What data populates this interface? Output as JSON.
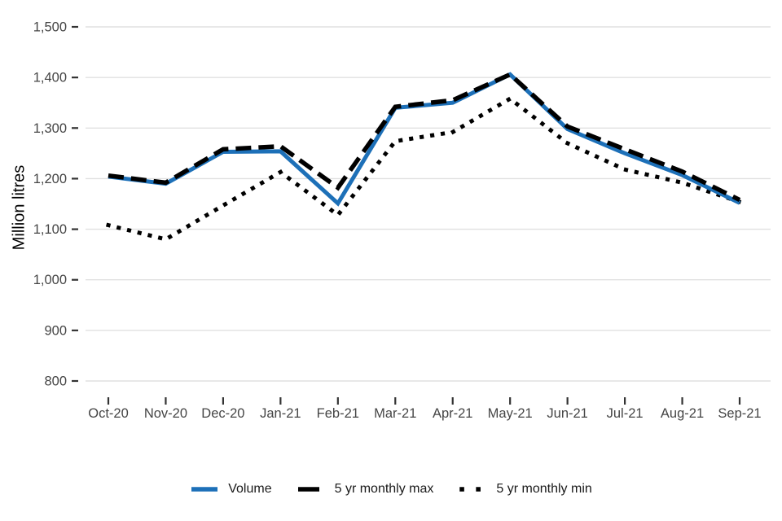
{
  "page": {
    "background": "#ffffff"
  },
  "chart_data": {
    "type": "line",
    "title": "",
    "xlabel": "",
    "ylabel": "Million litres",
    "categories": [
      "Oct-20",
      "Nov-20",
      "Dec-20",
      "Jan-21",
      "Feb-21",
      "Mar-21",
      "Apr-21",
      "May-21",
      "Jun-21",
      "Jul-21",
      "Aug-21",
      "Sep-21"
    ],
    "series": [
      {
        "name": "Volume",
        "color": "#1d70b8",
        "style": "solid",
        "values": [
          1204,
          1190,
          1253,
          1254,
          1151,
          1340,
          1350,
          1406,
          1298,
          1250,
          1207,
          1152
        ]
      },
      {
        "name": "5 yr monthly max",
        "color": "#000000",
        "style": "dashed",
        "values": [
          1206,
          1192,
          1258,
          1264,
          1182,
          1342,
          1355,
          1406,
          1303,
          1258,
          1214,
          1158
        ]
      },
      {
        "name": "5 yr monthly min",
        "color": "#000000",
        "style": "dotted",
        "values": [
          1108,
          1080,
          1147,
          1213,
          1128,
          1274,
          1292,
          1358,
          1270,
          1218,
          1192,
          1154
        ]
      }
    ],
    "ylim": [
      800,
      1500
    ],
    "yticks": [
      {
        "value": 1500,
        "label": "1,500"
      },
      {
        "value": 1400,
        "label": "1,400"
      },
      {
        "value": 1300,
        "label": "1,300"
      },
      {
        "value": 1200,
        "label": "1,200"
      },
      {
        "value": 1100,
        "label": "1,100"
      },
      {
        "value": 1000,
        "label": "1,000"
      },
      {
        "value": 900,
        "label": "900"
      },
      {
        "value": 800,
        "label": "800"
      }
    ],
    "grid": "horizontal",
    "legend_position": "bottom",
    "colors": {
      "gridline": "#e0e0e0",
      "tick_mark": "#333333",
      "axis_text": "#454545"
    }
  }
}
